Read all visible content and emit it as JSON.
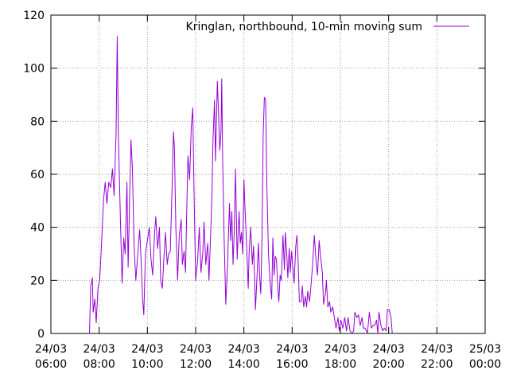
{
  "chart_data": {
    "type": "line",
    "title": "",
    "xlabel": "",
    "ylabel": "",
    "legend": {
      "position": "top-right",
      "entries": [
        "Kringlan, northbound, 10-min moving sum"
      ]
    },
    "grid": true,
    "colors": {
      "series": "#9400d3",
      "grid": "#a0a0a0",
      "axis": "#000000"
    },
    "xlim": [
      6,
      24
    ],
    "ylim": [
      0,
      120
    ],
    "x_ticks": [
      {
        "value": 6,
        "label": [
          "24/03",
          "06:00"
        ]
      },
      {
        "value": 8,
        "label": [
          "24/03",
          "08:00"
        ]
      },
      {
        "value": 10,
        "label": [
          "24/03",
          "10:00"
        ]
      },
      {
        "value": 12,
        "label": [
          "24/03",
          "12:00"
        ]
      },
      {
        "value": 14,
        "label": [
          "24/03",
          "14:00"
        ]
      },
      {
        "value": 16,
        "label": [
          "24/03",
          "16:00"
        ]
      },
      {
        "value": 18,
        "label": [
          "24/03",
          "18:00"
        ]
      },
      {
        "value": 20,
        "label": [
          "24/03",
          "20:00"
        ]
      },
      {
        "value": 22,
        "label": [
          "24/03",
          "22:00"
        ]
      },
      {
        "value": 24,
        "label": [
          "25/03",
          "00:00"
        ]
      }
    ],
    "y_ticks": [
      0,
      20,
      40,
      60,
      80,
      100,
      120
    ],
    "x_unit": "hours since 24/03 00:00",
    "series": [
      {
        "name": "Kringlan, northbound, 10-min moving sum",
        "points": [
          [
            7.6,
            0
          ],
          [
            7.65,
            18
          ],
          [
            7.72,
            21
          ],
          [
            7.75,
            8
          ],
          [
            7.82,
            13
          ],
          [
            7.88,
            4
          ],
          [
            7.95,
            17
          ],
          [
            8.02,
            20
          ],
          [
            8.1,
            34
          ],
          [
            8.18,
            50
          ],
          [
            8.25,
            57
          ],
          [
            8.32,
            49
          ],
          [
            8.4,
            57
          ],
          [
            8.48,
            55
          ],
          [
            8.55,
            62
          ],
          [
            8.62,
            52
          ],
          [
            8.7,
            75
          ],
          [
            8.75,
            112
          ],
          [
            8.8,
            74
          ],
          [
            8.88,
            43
          ],
          [
            8.95,
            19
          ],
          [
            9.02,
            36
          ],
          [
            9.08,
            30
          ],
          [
            9.15,
            57
          ],
          [
            9.2,
            25
          ],
          [
            9.25,
            46
          ],
          [
            9.32,
            73
          ],
          [
            9.38,
            62
          ],
          [
            9.45,
            33
          ],
          [
            9.52,
            20
          ],
          [
            9.6,
            30
          ],
          [
            9.68,
            39
          ],
          [
            9.75,
            25
          ],
          [
            9.8,
            13
          ],
          [
            9.85,
            7
          ],
          [
            9.92,
            30
          ],
          [
            10.0,
            35
          ],
          [
            10.08,
            40
          ],
          [
            10.15,
            28
          ],
          [
            10.22,
            22
          ],
          [
            10.3,
            38
          ],
          [
            10.35,
            44
          ],
          [
            10.42,
            32
          ],
          [
            10.5,
            40
          ],
          [
            10.55,
            20
          ],
          [
            10.62,
            17
          ],
          [
            10.68,
            28
          ],
          [
            10.75,
            38
          ],
          [
            10.82,
            26
          ],
          [
            10.88,
            30
          ],
          [
            10.95,
            31
          ],
          [
            11.02,
            54
          ],
          [
            11.08,
            76
          ],
          [
            11.12,
            70
          ],
          [
            11.18,
            40
          ],
          [
            11.25,
            20
          ],
          [
            11.32,
            37
          ],
          [
            11.4,
            43
          ],
          [
            11.45,
            26
          ],
          [
            11.52,
            31
          ],
          [
            11.58,
            23
          ],
          [
            11.62,
            42
          ],
          [
            11.68,
            67
          ],
          [
            11.75,
            58
          ],
          [
            11.82,
            78
          ],
          [
            11.88,
            85
          ],
          [
            11.92,
            60
          ],
          [
            12.0,
            20
          ],
          [
            12.08,
            27
          ],
          [
            12.15,
            40
          ],
          [
            12.22,
            23
          ],
          [
            12.3,
            31
          ],
          [
            12.35,
            42
          ],
          [
            12.42,
            26
          ],
          [
            12.5,
            34
          ],
          [
            12.55,
            20
          ],
          [
            12.62,
            37
          ],
          [
            12.68,
            53
          ],
          [
            12.72,
            73
          ],
          [
            12.78,
            88
          ],
          [
            12.82,
            65
          ],
          [
            12.9,
            95
          ],
          [
            12.95,
            83
          ],
          [
            13.0,
            69
          ],
          [
            13.05,
            76
          ],
          [
            13.08,
            96
          ],
          [
            13.12,
            65
          ],
          [
            13.18,
            36
          ],
          [
            13.25,
            11
          ],
          [
            13.32,
            25
          ],
          [
            13.4,
            49
          ],
          [
            13.45,
            35
          ],
          [
            13.5,
            46
          ],
          [
            13.55,
            26
          ],
          [
            13.6,
            38
          ],
          [
            13.65,
            62
          ],
          [
            13.72,
            28
          ],
          [
            13.8,
            46
          ],
          [
            13.85,
            34
          ],
          [
            13.9,
            38
          ],
          [
            13.95,
            30
          ],
          [
            14.0,
            58
          ],
          [
            14.05,
            46
          ],
          [
            14.12,
            32
          ],
          [
            14.18,
            17
          ],
          [
            14.22,
            31
          ],
          [
            14.28,
            40
          ],
          [
            14.35,
            26
          ],
          [
            14.4,
            33
          ],
          [
            14.45,
            20
          ],
          [
            14.48,
            9
          ],
          [
            14.55,
            23
          ],
          [
            14.6,
            34
          ],
          [
            14.65,
            22
          ],
          [
            14.7,
            15
          ],
          [
            14.75,
            35
          ],
          [
            14.8,
            75
          ],
          [
            14.85,
            89
          ],
          [
            14.9,
            88
          ],
          [
            14.95,
            56
          ],
          [
            15.02,
            30
          ],
          [
            15.08,
            20
          ],
          [
            15.15,
            13
          ],
          [
            15.2,
            36
          ],
          [
            15.25,
            22
          ],
          [
            15.3,
            29
          ],
          [
            15.35,
            28
          ],
          [
            15.4,
            18
          ],
          [
            15.45,
            12
          ],
          [
            15.5,
            22
          ],
          [
            15.55,
            20
          ],
          [
            15.62,
            37
          ],
          [
            15.68,
            24
          ],
          [
            15.72,
            38
          ],
          [
            15.78,
            29
          ],
          [
            15.82,
            21
          ],
          [
            15.88,
            32
          ],
          [
            15.92,
            23
          ],
          [
            15.98,
            31
          ],
          [
            16.02,
            26
          ],
          [
            16.08,
            19
          ],
          [
            16.15,
            33
          ],
          [
            16.2,
            37
          ],
          [
            16.25,
            27
          ],
          [
            16.3,
            12
          ],
          [
            16.38,
            12
          ],
          [
            16.42,
            18
          ],
          [
            16.48,
            10
          ],
          [
            16.55,
            14
          ],
          [
            16.6,
            10
          ],
          [
            16.65,
            16
          ],
          [
            16.72,
            12
          ],
          [
            16.78,
            18
          ],
          [
            16.85,
            26
          ],
          [
            16.92,
            37
          ],
          [
            17.0,
            26
          ],
          [
            17.05,
            22
          ],
          [
            17.12,
            35
          ],
          [
            17.18,
            29
          ],
          [
            17.25,
            23
          ],
          [
            17.3,
            11
          ],
          [
            17.38,
            15
          ],
          [
            17.42,
            20
          ],
          [
            17.48,
            10
          ],
          [
            17.55,
            12
          ],
          [
            17.6,
            8
          ],
          [
            17.68,
            10
          ],
          [
            17.75,
            6
          ],
          [
            17.82,
            2
          ],
          [
            17.9,
            6
          ],
          [
            17.95,
            1
          ],
          [
            18.02,
            5
          ],
          [
            18.1,
            2
          ],
          [
            18.18,
            6
          ],
          [
            18.25,
            1
          ],
          [
            18.32,
            6
          ],
          [
            18.4,
            1
          ],
          [
            18.48,
            0
          ],
          [
            18.55,
            1
          ],
          [
            18.6,
            8
          ],
          [
            18.68,
            6
          ],
          [
            18.75,
            7
          ],
          [
            18.82,
            3
          ],
          [
            18.9,
            6
          ],
          [
            18.95,
            2
          ],
          [
            19.02,
            2
          ],
          [
            19.08,
            1
          ],
          [
            19.12,
            0
          ],
          [
            19.2,
            8
          ],
          [
            19.28,
            2
          ],
          [
            19.35,
            3
          ],
          [
            19.42,
            3
          ],
          [
            19.5,
            5
          ],
          [
            19.55,
            0
          ],
          [
            19.6,
            8
          ],
          [
            19.68,
            3
          ],
          [
            19.75,
            1
          ],
          [
            19.82,
            2
          ],
          [
            19.9,
            1
          ],
          [
            19.95,
            9
          ],
          [
            20.02,
            9
          ],
          [
            20.1,
            6
          ],
          [
            20.15,
            0
          ]
        ]
      }
    ]
  }
}
